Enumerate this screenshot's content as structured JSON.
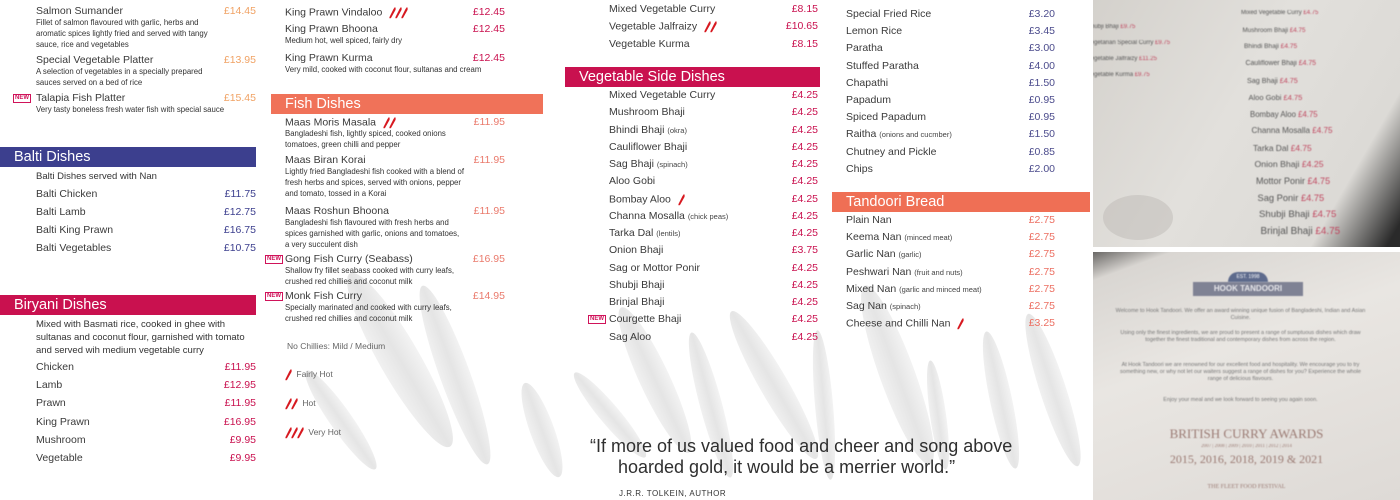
{
  "new_badge": "NEW",
  "colors": {
    "balti": "#3c3f8e",
    "biryani": "#c9114f",
    "fish": "#f07259",
    "veg_side": "#c9114f",
    "bread": "#ef6f55",
    "orange_price": "#f0a264",
    "chili": "#d71920"
  },
  "col1": {
    "specials": [
      {
        "name": "Salmon Sumander",
        "price": "£14.45",
        "desc": "Fillet of salmon flavoured with garlic, herbs and aromatic spices lightly fried and served with tangy sauce, rice and vegetables"
      },
      {
        "name": "Special Vegetable Platter",
        "price": "£13.95",
        "desc": "A selection of vegetables in a specially prepared sauces served on a bed of rice"
      },
      {
        "name": "Talapia Fish Platter",
        "price": "£15.45",
        "desc": "Very tasty boneless fresh water fish with special sauce",
        "is_new": true
      }
    ],
    "balti": {
      "title": "Balti Dishes",
      "note": "Balti Dishes served with Nan",
      "items": [
        {
          "name": "Balti Chicken",
          "price": "£11.75"
        },
        {
          "name": "Balti Lamb",
          "price": "£12.75"
        },
        {
          "name": "Balti King Prawn",
          "price": "£16.75"
        },
        {
          "name": "Balti Vegetables",
          "price": "£10.75"
        }
      ]
    },
    "biryani": {
      "title": "Biryani Dishes",
      "note": "Mixed with Basmati rice, cooked in ghee with sultanas and coconut flour, garnished with tomato and served wih medium vegetable curry",
      "items": [
        {
          "name": "Chicken",
          "price": "£11.95"
        },
        {
          "name": "Lamb",
          "price": "£12.95"
        },
        {
          "name": "Prawn",
          "price": "£11.95"
        },
        {
          "name": "King Prawn",
          "price": "£16.95"
        },
        {
          "name": "Mushroom",
          "price": "£9.95"
        },
        {
          "name": "Vegetable",
          "price": "£9.95"
        }
      ]
    }
  },
  "col2": {
    "prawn": [
      {
        "name": "King Prawn Vindaloo",
        "price": "£12.45",
        "chilies": 3
      },
      {
        "name": "King Prawn Bhoona",
        "price": "£12.45",
        "desc": "Medium hot, well spiced, fairly dry"
      },
      {
        "name": "King Prawn Kurma",
        "price": "£12.45",
        "desc": "Very mild, cooked with coconut flour, sultanas and cream"
      }
    ],
    "fish": {
      "title": "Fish Dishes",
      "items": [
        {
          "name": "Maas Moris Masala",
          "price": "£11.95",
          "chilies": 2,
          "desc": "Bangladeshi fish, lightly spiced, cooked onions tomatoes, green chilli and pepper"
        },
        {
          "name": "Maas Biran Korai",
          "price": "£11.95",
          "desc": "Lightly fried Bangladeshi fish cooked with a blend of fresh herbs and spices, served with onions, pepper and tomato, tossed in a Korai"
        },
        {
          "name": "Maas Roshun Bhoona",
          "price": "£11.95",
          "desc": "Bangladeshi fish flavoured with fresh herbs and spices garnished with garlic, onions and tomatoes, a very succulent dish"
        },
        {
          "name": "Gong Fish Curry (Seabass)",
          "price": "£16.95",
          "is_new": true,
          "desc": "Shallow fry fillet seabass cooked with curry leafs, crushed red chillies and coconut milk"
        },
        {
          "name": "Monk Fish Curry",
          "price": "£14.95",
          "is_new": true,
          "desc": "Specially marinated and cooked with curry leafs, crushed red chillies and coconut milk"
        }
      ]
    },
    "legend": {
      "no_chillies": "No Chillies:  Mild / Medium",
      "levels": [
        {
          "label": "Fairly Hot",
          "chilies": 1
        },
        {
          "label": "Hot",
          "chilies": 2
        },
        {
          "label": "Very Hot",
          "chilies": 3
        }
      ]
    }
  },
  "col3": {
    "veg": [
      {
        "name": "Mixed Vegetable Curry",
        "price": "£8.15"
      },
      {
        "name": "Vegetable Jalfraizy",
        "price": "£10.65",
        "chilies": 2
      },
      {
        "name": "Vegetable Kurma",
        "price": "£8.15"
      }
    ],
    "side": {
      "title": "Vegetable Side Dishes",
      "items": [
        {
          "name": "Mixed Vegetable Curry",
          "price": "£4.25"
        },
        {
          "name": "Mushroom Bhaji",
          "price": "£4.25"
        },
        {
          "name": "Bhindi Bhaji",
          "note": "(okra)",
          "price": "£4.25"
        },
        {
          "name": "Cauliflower Bhaji",
          "price": "£4.25"
        },
        {
          "name": "Sag Bhaji",
          "note": "(spinach)",
          "price": "£4.25"
        },
        {
          "name": "Aloo Gobi",
          "price": "£4.25"
        },
        {
          "name": "Bombay Aloo",
          "price": "£4.25",
          "chilies": 1
        },
        {
          "name": "Channa Mosalla",
          "note": "(chick peas)",
          "price": "£4.25"
        },
        {
          "name": "Tarka Dal",
          "note": "(lentils)",
          "price": "£4.25"
        },
        {
          "name": "Onion Bhaji",
          "price": "£3.75"
        },
        {
          "name": "Sag or Mottor Ponir",
          "price": "£4.25"
        },
        {
          "name": "Shubji Bhaji",
          "price": "£4.25"
        },
        {
          "name": "Brinjal Bhaji",
          "price": "£4.25"
        },
        {
          "name": "Courgette Bhaji",
          "price": "£4.25",
          "is_new": true
        },
        {
          "name": "Sag Aloo",
          "price": "£4.25"
        }
      ]
    },
    "quote": {
      "line1": "“If more of us valued food and cheer and song above",
      "line2": "hoarded gold, it would be a merrier world.”",
      "author": "J.R.R. TOLKEIN, AUTHOR"
    }
  },
  "col4": {
    "rice": [
      {
        "name": "Special Fried Rice",
        "price": "£3.20"
      },
      {
        "name": "Lemon Rice",
        "price": "£3.45"
      },
      {
        "name": "Paratha",
        "price": "£3.00"
      },
      {
        "name": "Stuffed Paratha",
        "price": "£4.00"
      },
      {
        "name": "Chapathi",
        "price": "£1.50"
      },
      {
        "name": "Papadum",
        "price": "£0.95"
      },
      {
        "name": "Spiced Papadum",
        "price": "£0.95"
      },
      {
        "name": "Raitha",
        "note": "(onions and cucmber)",
        "price": "£1.50"
      },
      {
        "name": "Chutney and Pickle",
        "price": "£0.85"
      },
      {
        "name": "Chips",
        "price": "£2.00"
      }
    ],
    "bread": {
      "title": "Tandoori Bread",
      "items": [
        {
          "name": "Plain Nan",
          "price": "£2.75"
        },
        {
          "name": "Keema Nan",
          "note": "(minced meat)",
          "price": "£2.75"
        },
        {
          "name": "Garlic Nan",
          "note": "(garlic)",
          "price": "£2.75"
        },
        {
          "name": "Peshwari Nan",
          "note": "(fruit and nuts)",
          "price": "£2.75"
        },
        {
          "name": "Mixed Nan",
          "note": "(garlic and minced meat)",
          "price": "£2.75"
        },
        {
          "name": "Sag Nan",
          "note": "(spinach)",
          "price": "£2.75"
        },
        {
          "name": "Cheese and Chilli Nan",
          "price": "£3.25",
          "chilies": 1
        }
      ]
    }
  },
  "photo1": {
    "left": [
      {
        "name": "Shubji Bhaji",
        "price": "£9.75"
      },
      {
        "name": "Vegetarian Special Curry",
        "price": "£9.75"
      },
      {
        "name": "Vegetable Jalfraizy",
        "price": "£11.25"
      },
      {
        "name": "Vegetable Kurma",
        "price": "£9.75"
      }
    ],
    "right": [
      {
        "name": "Mixed Vegetable Curry",
        "price": "£4.75"
      },
      {
        "name": "Mushroom Bhaji",
        "price": "£4.75"
      },
      {
        "name": "Bhindi Bhaji",
        "price": "£4.75"
      },
      {
        "name": "Cauliflower Bhaji",
        "price": "£4.75"
      },
      {
        "name": "Sag Bhaji",
        "price": "£4.75"
      },
      {
        "name": "Aloo Gobi",
        "price": "£4.75"
      },
      {
        "name": "Bombay Aloo",
        "price": "£4.75"
      },
      {
        "name": "Channa Mosalla",
        "price": "£4.75"
      },
      {
        "name": "Tarka Dal",
        "price": "£4.75"
      },
      {
        "name": "Onion Bhaji",
        "price": "£4.25"
      },
      {
        "name": "Mottor Ponir",
        "price": "£4.75"
      },
      {
        "name": "Sag Ponir",
        "price": "£4.75"
      },
      {
        "name": "Shubji Bhaji",
        "price": "£4.75"
      },
      {
        "name": "Brinjal Bhaji",
        "price": "£4.75"
      }
    ]
  },
  "photo2": {
    "logo": "HOOK TANDOORI",
    "est": "EST. 1998",
    "paragraphs": [
      "Welcome to Hook Tandoori. We offer an award winning unique fusion of Bangladeshi, Indian and Asian Cuisine.",
      "Using only the finest ingredients, we are proud to present a range of sumptuous dishes which draw together the finest traditional and contemporary dishes from across the region.",
      "At Hook Tandoori we are renowned for our excellent food and hospitality. We encourage you to try something new, or why not let our waiters suggest a range of dishes for you? Experience the whole range of delicious flavours.",
      "Enjoy your meal and we look forward to seeing you again soon."
    ],
    "awards_title": "BRITISH CURRY AWARDS",
    "awards_years_small": "2007 | 2008 | 2009 | 2010 | 2011 | 2012 | 2014",
    "awards_years": "2015, 2016, 2018, 2019 & 2021",
    "festival": "THE FLEET FOOD FESTIVAL"
  }
}
